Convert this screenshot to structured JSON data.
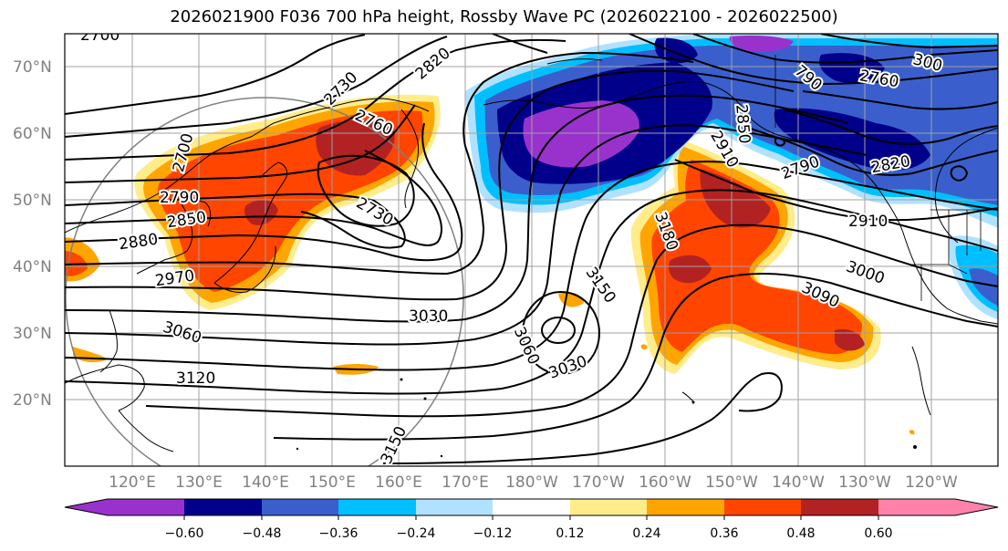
{
  "title": "2026021900 F036 700 hPa height, Rossby Wave PC (2026022100 - 2026022500)",
  "lat_labels": [
    "70°N",
    "60°N",
    "50°N",
    "40°N",
    "30°N",
    "20°N"
  ],
  "lon_labels": [
    "120°E",
    "130°E",
    "140°E",
    "150°E",
    "160°E",
    "170°E",
    "180°W",
    "170°W",
    "160°W",
    "150°W",
    "140°W",
    "130°W",
    "120°W"
  ],
  "colorbar": {
    "colors": [
      "#9932CC",
      "#00008B",
      "#3A5FCD",
      "#00BFFF",
      "#B0E2FF",
      "#FFFFFF",
      "#FFEC8B",
      "#FFA500",
      "#FF4500",
      "#B22222",
      "#FF82AB"
    ],
    "ticks": [
      "−0.60",
      "−0.48",
      "−0.36",
      "−0.24",
      "−0.12",
      "0.12",
      "0.24",
      "0.36",
      "0.48",
      "0.60"
    ]
  },
  "contour_labels": [
    "2700",
    "2730",
    "2760",
    "2820",
    "2790",
    "2850",
    "2880",
    "2970",
    "3060",
    "3120",
    "3150",
    "2730",
    "3030",
    "3060",
    "3030",
    "3150",
    "3180",
    "3000",
    "3090",
    "2910",
    "2760",
    "2790",
    "2820",
    "2850",
    "2910",
    "300",
    "790",
    "2790",
    "2700"
  ]
}
